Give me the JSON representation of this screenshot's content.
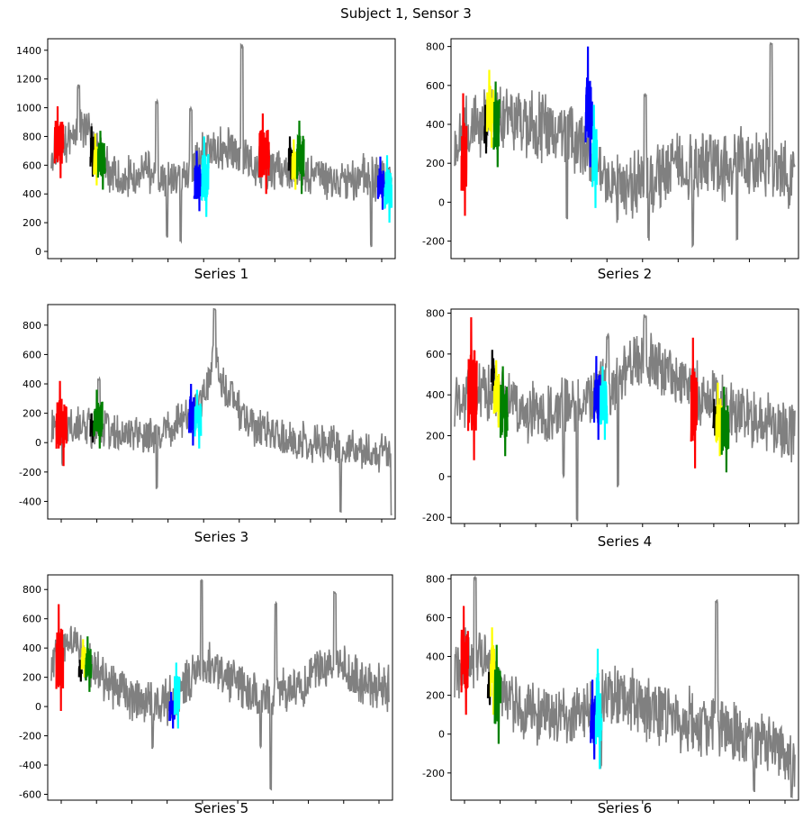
{
  "figure": {
    "title": "Subject 1, Sensor 3"
  },
  "colors": {
    "background": "#808080",
    "segments": [
      "#ff0000",
      "#000000",
      "#ffff00",
      "#008000",
      "#0000ff",
      "#00ffff"
    ]
  },
  "chart_data": [
    {
      "type": "line",
      "title": "Series 1",
      "ylim": [
        -50,
        1480
      ],
      "yticks": [
        0,
        200,
        400,
        600,
        800,
        1000,
        1200,
        1400
      ],
      "x_range": [
        0,
        1000
      ],
      "trend": [
        [
          0,
          700
        ],
        [
          40,
          720
        ],
        [
          80,
          900
        ],
        [
          110,
          800
        ],
        [
          150,
          650
        ],
        [
          200,
          480
        ],
        [
          240,
          520
        ],
        [
          280,
          600
        ],
        [
          300,
          480
        ],
        [
          350,
          520
        ],
        [
          400,
          500
        ],
        [
          440,
          700
        ],
        [
          480,
          720
        ],
        [
          520,
          700
        ],
        [
          560,
          650
        ],
        [
          600,
          600
        ],
        [
          650,
          580
        ],
        [
          700,
          560
        ],
        [
          750,
          530
        ],
        [
          800,
          500
        ],
        [
          850,
          480
        ],
        [
          900,
          520
        ],
        [
          950,
          500
        ],
        [
          1000,
          500
        ]
      ],
      "noise": 180,
      "peaks": [
        {
          "x": 560,
          "y": 1440
        },
        {
          "x": 80,
          "y": 1160
        },
        {
          "x": 310,
          "y": 1050
        },
        {
          "x": 410,
          "y": 1000
        }
      ],
      "dips": [
        {
          "x": 340,
          "y": 100
        },
        {
          "x": 380,
          "y": 60
        },
        {
          "x": 940,
          "y": 30
        }
      ],
      "segments": [
        {
          "color": "red",
          "x0": 10,
          "x1": 35,
          "min": 510,
          "max": 1010
        },
        {
          "color": "black",
          "x0": 115,
          "x1": 125,
          "min": 520,
          "max": 870
        },
        {
          "color": "yellow",
          "x0": 125,
          "x1": 137,
          "min": 460,
          "max": 820
        },
        {
          "color": "green",
          "x0": 137,
          "x1": 158,
          "min": 430,
          "max": 840
        },
        {
          "color": "blue",
          "x0": 420,
          "x1": 442,
          "min": 280,
          "max": 700
        },
        {
          "color": "cyan",
          "x0": 442,
          "x1": 462,
          "min": 240,
          "max": 800
        },
        {
          "color": "red",
          "x0": 612,
          "x1": 640,
          "min": 400,
          "max": 960
        },
        {
          "color": "black",
          "x0": 698,
          "x1": 708,
          "min": 500,
          "max": 800
        },
        {
          "color": "yellow",
          "x0": 708,
          "x1": 722,
          "min": 430,
          "max": 780
        },
        {
          "color": "green",
          "x0": 722,
          "x1": 742,
          "min": 400,
          "max": 910
        },
        {
          "color": "blue",
          "x0": 960,
          "x1": 980,
          "min": 290,
          "max": 660
        },
        {
          "color": "cyan",
          "x0": 980,
          "x1": 1000,
          "min": 200,
          "max": 670
        }
      ]
    },
    {
      "type": "line",
      "title": "Series 2",
      "ylim": [
        -290,
        840
      ],
      "yticks": [
        -200,
        0,
        200,
        400,
        600,
        800
      ],
      "x_range": [
        0,
        1000
      ],
      "trend": [
        [
          0,
          300
        ],
        [
          60,
          420
        ],
        [
          120,
          450
        ],
        [
          200,
          400
        ],
        [
          260,
          380
        ],
        [
          300,
          360
        ],
        [
          350,
          320
        ],
        [
          400,
          260
        ],
        [
          450,
          100
        ],
        [
          500,
          60
        ],
        [
          550,
          80
        ],
        [
          600,
          150
        ],
        [
          650,
          200
        ],
        [
          700,
          180
        ],
        [
          750,
          220
        ],
        [
          800,
          180
        ],
        [
          850,
          220
        ],
        [
          900,
          180
        ],
        [
          950,
          150
        ],
        [
          1000,
          150
        ]
      ],
      "noise": 200,
      "peaks": [
        {
          "x": 930,
          "y": 820
        },
        {
          "x": 560,
          "y": 560
        }
      ],
      "dips": [
        {
          "x": 330,
          "y": -90
        },
        {
          "x": 570,
          "y": -200
        },
        {
          "x": 700,
          "y": -230
        },
        {
          "x": 830,
          "y": -200
        }
      ],
      "segments": [
        {
          "color": "red",
          "x0": 20,
          "x1": 35,
          "min": -70,
          "max": 560
        },
        {
          "color": "black",
          "x0": 88,
          "x1": 95,
          "min": 250,
          "max": 500
        },
        {
          "color": "yellow",
          "x0": 95,
          "x1": 115,
          "min": 280,
          "max": 680
        },
        {
          "color": "green",
          "x0": 115,
          "x1": 132,
          "min": 180,
          "max": 620
        },
        {
          "color": "blue",
          "x0": 385,
          "x1": 405,
          "min": 180,
          "max": 800
        },
        {
          "color": "cyan",
          "x0": 405,
          "x1": 418,
          "min": -30,
          "max": 500
        }
      ]
    },
    {
      "type": "line",
      "title": "Series 3",
      "ylim": [
        -520,
        940
      ],
      "yticks": [
        -400,
        -200,
        0,
        200,
        400,
        600,
        800
      ],
      "x_range": [
        0,
        1000
      ],
      "trend": [
        [
          0,
          150
        ],
        [
          60,
          120
        ],
        [
          120,
          100
        ],
        [
          200,
          60
        ],
        [
          250,
          60
        ],
        [
          300,
          40
        ],
        [
          340,
          80
        ],
        [
          400,
          180
        ],
        [
          450,
          300
        ],
        [
          480,
          600
        ],
        [
          520,
          300
        ],
        [
          560,
          200
        ],
        [
          600,
          100
        ],
        [
          700,
          20
        ],
        [
          800,
          0
        ],
        [
          900,
          -40
        ],
        [
          950,
          -80
        ],
        [
          1000,
          -60
        ]
      ],
      "noise": 150,
      "peaks": [
        {
          "x": 480,
          "y": 920
        },
        {
          "x": 530,
          "y": 420
        },
        {
          "x": 140,
          "y": 440
        }
      ],
      "dips": [
        {
          "x": 32,
          "y": -160
        },
        {
          "x": 310,
          "y": -320
        },
        {
          "x": 850,
          "y": -480
        },
        {
          "x": 1000,
          "y": -500
        }
      ],
      "segments": [
        {
          "color": "red",
          "x0": 15,
          "x1": 45,
          "min": -160,
          "max": 420
        },
        {
          "color": "black",
          "x0": 115,
          "x1": 125,
          "min": 0,
          "max": 200
        },
        {
          "color": "green",
          "x0": 125,
          "x1": 150,
          "min": -40,
          "max": 360
        },
        {
          "color": "blue",
          "x0": 405,
          "x1": 422,
          "min": -20,
          "max": 400
        },
        {
          "color": "cyan",
          "x0": 422,
          "x1": 440,
          "min": -40,
          "max": 360
        }
      ]
    },
    {
      "type": "line",
      "title": "Series 4",
      "ylim": [
        -230,
        820
      ],
      "yticks": [
        -200,
        0,
        200,
        400,
        600,
        800
      ],
      "x_range": [
        0,
        1000
      ],
      "trend": [
        [
          0,
          380
        ],
        [
          60,
          380
        ],
        [
          120,
          420
        ],
        [
          180,
          350
        ],
        [
          220,
          320
        ],
        [
          260,
          300
        ],
        [
          300,
          320
        ],
        [
          360,
          380
        ],
        [
          420,
          420
        ],
        [
          470,
          460
        ],
        [
          520,
          560
        ],
        [
          560,
          600
        ],
        [
          600,
          520
        ],
        [
          640,
          460
        ],
        [
          700,
          420
        ],
        [
          760,
          380
        ],
        [
          820,
          320
        ],
        [
          880,
          280
        ],
        [
          940,
          260
        ],
        [
          1000,
          220
        ]
      ],
      "noise": 170,
      "peaks": [
        {
          "x": 560,
          "y": 800
        },
        {
          "x": 450,
          "y": 700
        }
      ],
      "dips": [
        {
          "x": 360,
          "y": -220
        },
        {
          "x": 480,
          "y": -60
        },
        {
          "x": 320,
          "y": 0
        }
      ],
      "segments": [
        {
          "color": "red",
          "x0": 40,
          "x1": 65,
          "min": 80,
          "max": 780
        },
        {
          "color": "black",
          "x0": 108,
          "x1": 116,
          "min": 420,
          "max": 620
        },
        {
          "color": "yellow",
          "x0": 116,
          "x1": 135,
          "min": 240,
          "max": 570
        },
        {
          "color": "green",
          "x0": 135,
          "x1": 155,
          "min": 100,
          "max": 540
        },
        {
          "color": "blue",
          "x0": 410,
          "x1": 428,
          "min": 180,
          "max": 590
        },
        {
          "color": "cyan",
          "x0": 428,
          "x1": 448,
          "min": 180,
          "max": 540
        },
        {
          "color": "red",
          "x0": 695,
          "x1": 712,
          "min": 40,
          "max": 680
        },
        {
          "color": "black",
          "x0": 760,
          "x1": 768,
          "min": 200,
          "max": 380
        },
        {
          "color": "yellow",
          "x0": 768,
          "x1": 785,
          "min": 100,
          "max": 460
        },
        {
          "color": "green",
          "x0": 785,
          "x1": 805,
          "min": 20,
          "max": 440
        }
      ]
    },
    {
      "type": "line",
      "title": "Series 5",
      "ylim": [
        -640,
        900
      ],
      "yticks": [
        -600,
        -400,
        -200,
        0,
        200,
        400,
        600,
        800
      ],
      "x_range": [
        0,
        1000
      ],
      "trend": [
        [
          0,
          300
        ],
        [
          30,
          420
        ],
        [
          60,
          480
        ],
        [
          100,
          300
        ],
        [
          150,
          200
        ],
        [
          200,
          120
        ],
        [
          250,
          60
        ],
        [
          300,
          20
        ],
        [
          350,
          40
        ],
        [
          380,
          60
        ],
        [
          420,
          240
        ],
        [
          470,
          300
        ],
        [
          520,
          200
        ],
        [
          580,
          100
        ],
        [
          640,
          80
        ],
        [
          700,
          100
        ],
        [
          760,
          180
        ],
        [
          820,
          300
        ],
        [
          860,
          260
        ],
        [
          920,
          160
        ],
        [
          1000,
          120
        ]
      ],
      "noise": 180,
      "peaks": [
        {
          "x": 445,
          "y": 870
        },
        {
          "x": 665,
          "y": 710
        },
        {
          "x": 840,
          "y": 790
        }
      ],
      "dips": [
        {
          "x": 650,
          "y": -580
        },
        {
          "x": 620,
          "y": -280
        },
        {
          "x": 300,
          "y": -290
        }
      ],
      "segments": [
        {
          "color": "red",
          "x0": 15,
          "x1": 35,
          "min": -30,
          "max": 700
        },
        {
          "color": "black",
          "x0": 82,
          "x1": 90,
          "min": 170,
          "max": 320
        },
        {
          "color": "yellow",
          "x0": 90,
          "x1": 102,
          "min": 200,
          "max": 460
        },
        {
          "color": "green",
          "x0": 102,
          "x1": 118,
          "min": 100,
          "max": 480
        },
        {
          "color": "blue",
          "x0": 350,
          "x1": 365,
          "min": -150,
          "max": 100
        },
        {
          "color": "cyan",
          "x0": 365,
          "x1": 380,
          "min": -150,
          "max": 300
        }
      ]
    },
    {
      "type": "line",
      "title": "Series 6",
      "ylim": [
        -340,
        820
      ],
      "yticks": [
        -200,
        0,
        200,
        400,
        600,
        800
      ],
      "x_range": [
        0,
        1000
      ],
      "trend": [
        [
          0,
          300
        ],
        [
          40,
          400
        ],
        [
          80,
          420
        ],
        [
          120,
          300
        ],
        [
          160,
          180
        ],
        [
          220,
          120
        ],
        [
          300,
          100
        ],
        [
          360,
          80
        ],
        [
          400,
          120
        ],
        [
          440,
          200
        ],
        [
          500,
          180
        ],
        [
          560,
          140
        ],
        [
          620,
          100
        ],
        [
          700,
          60
        ],
        [
          780,
          20
        ],
        [
          860,
          -20
        ],
        [
          940,
          -60
        ],
        [
          1000,
          -120
        ]
      ],
      "noise": 190,
      "peaks": [
        {
          "x": 60,
          "y": 810
        },
        {
          "x": 770,
          "y": 690
        }
      ],
      "dips": [
        {
          "x": 430,
          "y": -180
        },
        {
          "x": 990,
          "y": -330
        },
        {
          "x": 880,
          "y": -300
        }
      ],
      "segments": [
        {
          "color": "red",
          "x0": 20,
          "x1": 40,
          "min": 100,
          "max": 660
        },
        {
          "color": "black",
          "x0": 98,
          "x1": 106,
          "min": 150,
          "max": 320
        },
        {
          "color": "yellow",
          "x0": 106,
          "x1": 118,
          "min": 100,
          "max": 550
        },
        {
          "color": "green",
          "x0": 118,
          "x1": 135,
          "min": -50,
          "max": 460
        },
        {
          "color": "blue",
          "x0": 400,
          "x1": 415,
          "min": -130,
          "max": 280
        },
        {
          "color": "cyan",
          "x0": 415,
          "x1": 432,
          "min": -180,
          "max": 440
        }
      ]
    }
  ]
}
